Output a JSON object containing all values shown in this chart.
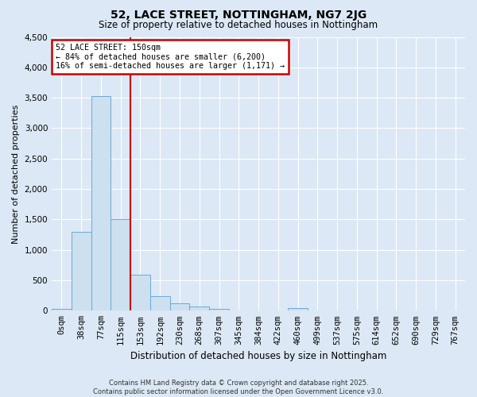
{
  "title": "52, LACE STREET, NOTTINGHAM, NG7 2JG",
  "subtitle": "Size of property relative to detached houses in Nottingham",
  "xlabel": "Distribution of detached houses by size in Nottingham",
  "ylabel": "Number of detached properties",
  "bin_labels": [
    "0sqm",
    "38sqm",
    "77sqm",
    "115sqm",
    "153sqm",
    "192sqm",
    "230sqm",
    "268sqm",
    "307sqm",
    "345sqm",
    "384sqm",
    "422sqm",
    "460sqm",
    "499sqm",
    "537sqm",
    "575sqm",
    "614sqm",
    "652sqm",
    "690sqm",
    "729sqm",
    "767sqm"
  ],
  "bar_values": [
    30,
    1300,
    3530,
    1500,
    590,
    245,
    120,
    70,
    30,
    10,
    0,
    0,
    40,
    0,
    0,
    0,
    0,
    0,
    0,
    0,
    0
  ],
  "bar_color": "#cce0f0",
  "bar_edge_color": "#6aaad4",
  "vline_color": "#cc0000",
  "ylim": [
    0,
    4500
  ],
  "yticks": [
    0,
    500,
    1000,
    1500,
    2000,
    2500,
    3000,
    3500,
    4000,
    4500
  ],
  "annotation_title": "52 LACE STREET: 150sqm",
  "annotation_line1": "← 84% of detached houses are smaller (6,200)",
  "annotation_line2": "16% of semi-detached houses are larger (1,171) →",
  "annotation_box_color": "#cc0000",
  "footer_line1": "Contains HM Land Registry data © Crown copyright and database right 2025.",
  "footer_line2": "Contains public sector information licensed under the Open Government Licence v3.0.",
  "bg_color": "#dce8f5",
  "plot_bg_color": "#dce8f5",
  "grid_color": "#ffffff"
}
